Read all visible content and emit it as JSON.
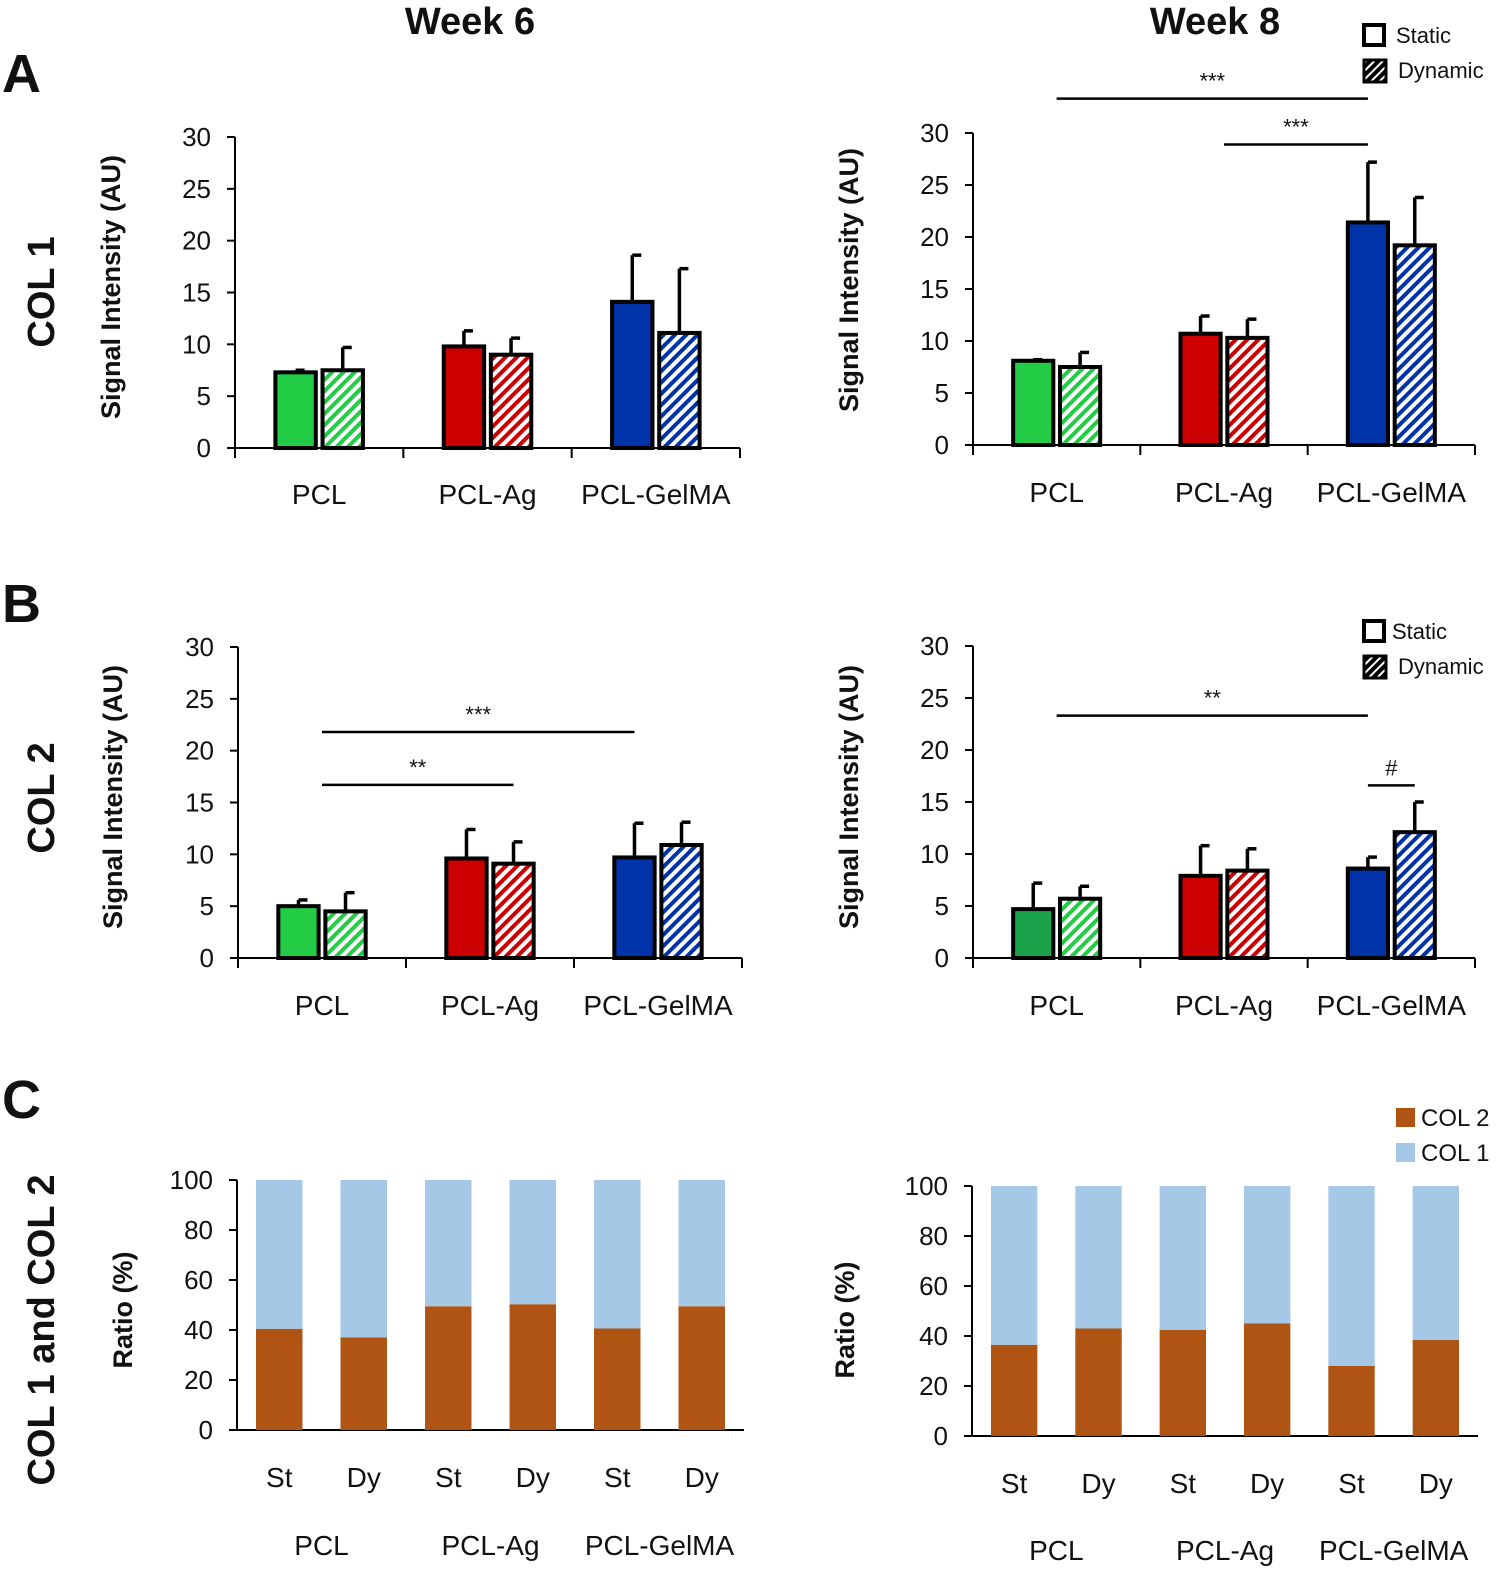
{
  "figure": {
    "col_titles": [
      "Week 6",
      "Week 8"
    ],
    "panel_labels": [
      "A",
      "B",
      "C"
    ],
    "row_labels": [
      "COL 1",
      "COL 2",
      "COL 1 and COL 2"
    ]
  },
  "legends": {
    "top": {
      "items": [
        "Static",
        "Dynamic"
      ]
    },
    "mid": {
      "items": [
        "Static",
        "Dynamic"
      ]
    },
    "bottom": {
      "items": [
        "COL 2",
        "COL 1"
      ]
    }
  },
  "colors": {
    "green": "#22cc44",
    "green_dark": "#1aa34a",
    "red": "#cc0000",
    "blue": "#0033aa",
    "col1": "#a4c8e6",
    "col2": "#b05414"
  },
  "chart_data": [
    {
      "id": "A6",
      "type": "bar",
      "title": "Week 6",
      "ylabel": "Signal Intensity (AU)",
      "ylim": [
        0,
        30
      ],
      "yticks": [
        "0",
        "5",
        "10",
        "15",
        "20",
        "25",
        "30"
      ],
      "categories": [
        "PCL",
        "PCL-Ag",
        "PCL-GelMA"
      ],
      "series": [
        {
          "name": "Static",
          "values": [
            7.3,
            9.8,
            14.1
          ],
          "errors": [
            0.2,
            1.5,
            4.5
          ]
        },
        {
          "name": "Dynamic",
          "values": [
            7.5,
            9.0,
            11.1
          ],
          "errors": [
            2.2,
            1.6,
            6.2
          ]
        }
      ],
      "significance": []
    },
    {
      "id": "A8",
      "type": "bar",
      "title": "Week 8",
      "ylabel": "Signal Intensity (AU)",
      "ylim": [
        0,
        30
      ],
      "yticks": [
        "0",
        "5",
        "10",
        "15",
        "20",
        "25",
        "30"
      ],
      "categories": [
        "PCL",
        "PCL-Ag",
        "PCL-GelMA"
      ],
      "series": [
        {
          "name": "Static",
          "values": [
            8.1,
            10.7,
            21.4
          ],
          "errors": [
            0.1,
            1.7,
            5.8
          ]
        },
        {
          "name": "Dynamic",
          "values": [
            7.5,
            10.3,
            19.2
          ],
          "errors": [
            1.4,
            1.8,
            4.6
          ]
        }
      ],
      "significance": [
        {
          "label": "***",
          "from": [
            0,
            0.5
          ],
          "to": [
            2,
            0
          ],
          "y": 33.3
        },
        {
          "label": "***",
          "from": [
            1,
            0.5
          ],
          "to": [
            2,
            0
          ],
          "y": 28.9
        }
      ]
    },
    {
      "id": "B6",
      "type": "bar",
      "ylabel": "Signal Intensity (AU)",
      "ylim": [
        0,
        30
      ],
      "yticks": [
        "0",
        "5",
        "10",
        "15",
        "20",
        "25",
        "30"
      ],
      "categories": [
        "PCL",
        "PCL-Ag",
        "PCL-GelMA"
      ],
      "series": [
        {
          "name": "Static",
          "values": [
            5.0,
            9.6,
            9.7
          ],
          "errors": [
            0.6,
            2.8,
            3.3
          ]
        },
        {
          "name": "Dynamic",
          "values": [
            4.5,
            9.1,
            10.9
          ],
          "errors": [
            1.8,
            2.1,
            2.2
          ]
        }
      ],
      "significance": [
        {
          "label": "***",
          "from": [
            0,
            0.5
          ],
          "to": [
            2,
            0
          ],
          "y": 21.8
        },
        {
          "label": "**",
          "from": [
            0,
            0.5
          ],
          "to": [
            1,
            0.5
          ],
          "y": 16.7
        }
      ]
    },
    {
      "id": "B8",
      "type": "bar",
      "ylabel": "Signal Intensity (AU)",
      "ylim": [
        0,
        30
      ],
      "yticks": [
        "0",
        "5",
        "10",
        "15",
        "20",
        "25",
        "30"
      ],
      "categories": [
        "PCL",
        "PCL-Ag",
        "PCL-GelMA"
      ],
      "series": [
        {
          "name": "Static",
          "values": [
            4.7,
            7.9,
            8.6
          ],
          "errors": [
            2.5,
            2.9,
            1.1
          ]
        },
        {
          "name": "Dynamic",
          "values": [
            5.7,
            8.4,
            12.1
          ],
          "errors": [
            1.2,
            2.1,
            2.9
          ]
        }
      ],
      "significance": [
        {
          "label": "**",
          "from": [
            0,
            0.5
          ],
          "to": [
            2,
            0
          ],
          "y": 23.3
        },
        {
          "label": "#",
          "from": [
            2,
            0
          ],
          "to": [
            2,
            1
          ],
          "y": 16.6
        }
      ]
    },
    {
      "id": "C6",
      "type": "stacked-bar",
      "ylabel": "Ratio (%)",
      "ylim": [
        0,
        100
      ],
      "yticks": [
        "0",
        "20",
        "40",
        "60",
        "80",
        "100"
      ],
      "bars": [
        "St",
        "Dy",
        "St",
        "Dy",
        "St",
        "Dy"
      ],
      "groups": [
        "PCL",
        "PCL-Ag",
        "PCL-GelMA"
      ],
      "series": [
        {
          "name": "COL 2",
          "values": [
            40.5,
            37.0,
            49.5,
            50.3,
            40.6,
            49.5
          ]
        },
        {
          "name": "COL 1",
          "values": [
            59.5,
            63.0,
            50.5,
            49.7,
            59.4,
            50.5
          ]
        }
      ]
    },
    {
      "id": "C8",
      "type": "stacked-bar",
      "ylabel": "Ratio (%)",
      "ylim": [
        0,
        100
      ],
      "yticks": [
        "0",
        "20",
        "40",
        "60",
        "80",
        "100"
      ],
      "bars": [
        "St",
        "Dy",
        "St",
        "Dy",
        "St",
        "Dy"
      ],
      "groups": [
        "PCL",
        "PCL-Ag",
        "PCL-GelMA"
      ],
      "series": [
        {
          "name": "COL 2",
          "values": [
            36.5,
            43.0,
            42.5,
            45.0,
            28.0,
            38.5
          ]
        },
        {
          "name": "COL 1",
          "values": [
            63.5,
            57.0,
            57.5,
            55.0,
            72.0,
            61.5
          ]
        }
      ]
    }
  ]
}
